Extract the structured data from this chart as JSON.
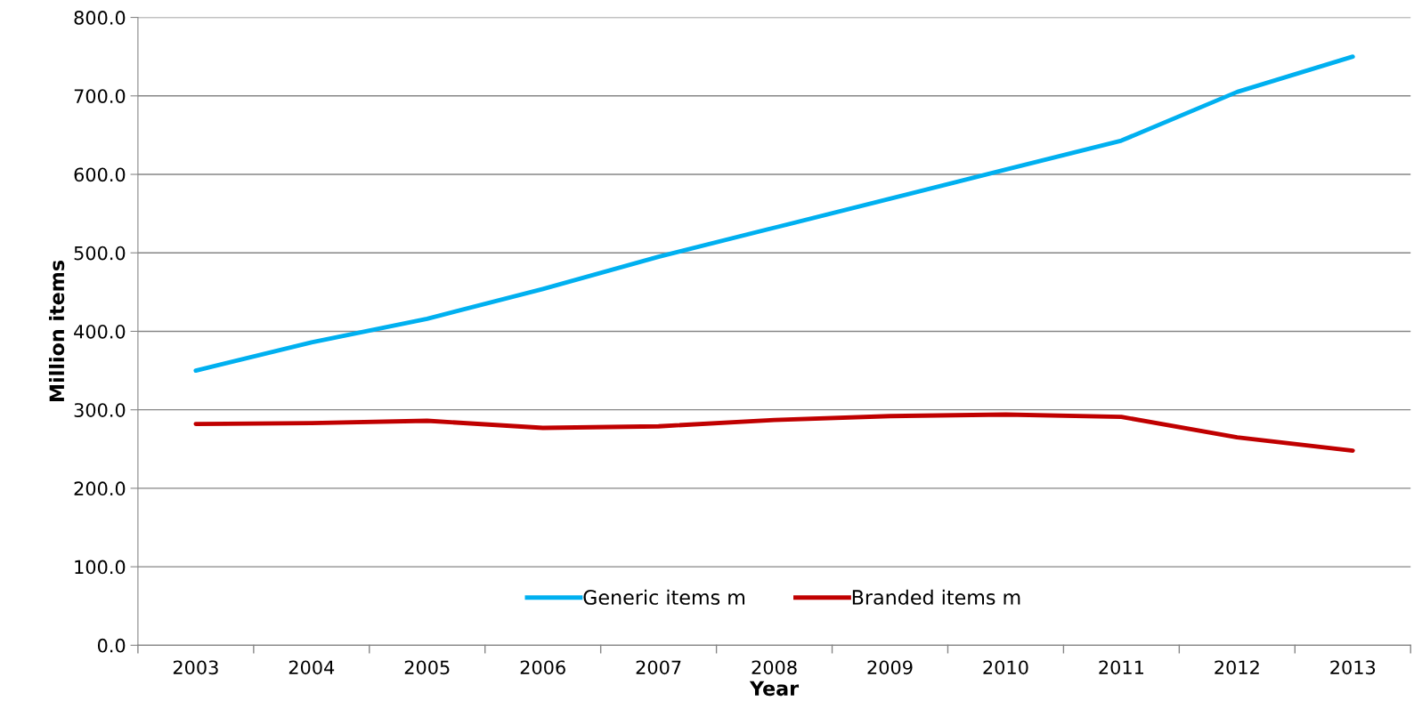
{
  "chart_data": {
    "type": "line",
    "xlabel": "Year",
    "ylabel": "Million items",
    "categories": [
      "2003",
      "2004",
      "2005",
      "2006",
      "2007",
      "2008",
      "2009",
      "2010",
      "2011",
      "2012",
      "2013"
    ],
    "series": [
      {
        "name": "Generic items m",
        "color": "#00b0f0",
        "values": [
          350,
          386,
          416,
          454,
          495,
          532,
          569,
          606,
          643,
          705,
          750
        ]
      },
      {
        "name": "Branded items m",
        "color": "#c00000",
        "values": [
          282,
          283,
          286,
          277,
          279,
          287,
          292,
          294,
          291,
          265,
          248
        ]
      }
    ],
    "ylim": [
      0,
      800
    ],
    "yticks": [
      {
        "value": 0,
        "label": "0.0"
      },
      {
        "value": 100,
        "label": "100.0"
      },
      {
        "value": 200,
        "label": "200.0"
      },
      {
        "value": 300,
        "label": "300.0"
      },
      {
        "value": 400,
        "label": "400.0"
      },
      {
        "value": 500,
        "label": "500.0"
      },
      {
        "value": 600,
        "label": "600.0"
      },
      {
        "value": 700,
        "label": "700.0"
      },
      {
        "value": 800,
        "label": "800.0"
      }
    ],
    "grid": "y",
    "legend": "bottom",
    "marker": "none",
    "line_style": "solid"
  }
}
